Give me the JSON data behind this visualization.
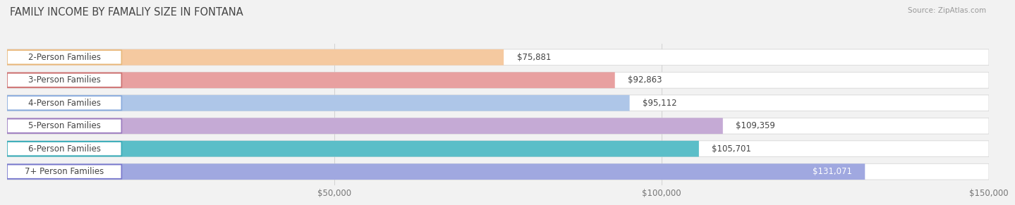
{
  "title": "FAMILY INCOME BY FAMALIY SIZE IN FONTANA",
  "source": "Source: ZipAtlas.com",
  "categories": [
    "2-Person Families",
    "3-Person Families",
    "4-Person Families",
    "5-Person Families",
    "6-Person Families",
    "7+ Person Families"
  ],
  "values": [
    75881,
    92863,
    95112,
    109359,
    105701,
    131071
  ],
  "labels": [
    "$75,881",
    "$92,863",
    "$95,112",
    "$109,359",
    "$105,701",
    "$131,071"
  ],
  "bar_colors": [
    "#f5c9a0",
    "#e8a0a0",
    "#aec6e8",
    "#c5aad5",
    "#5bbec8",
    "#a0a8e0"
  ],
  "label_box_border_colors": [
    "#e8b87a",
    "#cc7070",
    "#88aadc",
    "#9a7abf",
    "#3aabb8",
    "#7878cc"
  ],
  "value_label_colors": [
    "#555555",
    "#555555",
    "#555555",
    "#555555",
    "#555555",
    "#ffffff"
  ],
  "xlim": [
    0,
    150000
  ],
  "xticklabels": [
    "$50,000",
    "$100,000",
    "$150,000"
  ],
  "xtick_values": [
    50000,
    100000,
    150000
  ],
  "background_color": "#f2f2f2",
  "title_fontsize": 10.5,
  "label_fontsize": 8.5,
  "value_fontsize": 8.5,
  "bar_height": 0.7,
  "fig_width": 14.06,
  "fig_height": 3.05,
  "bar_gap": 0.08
}
